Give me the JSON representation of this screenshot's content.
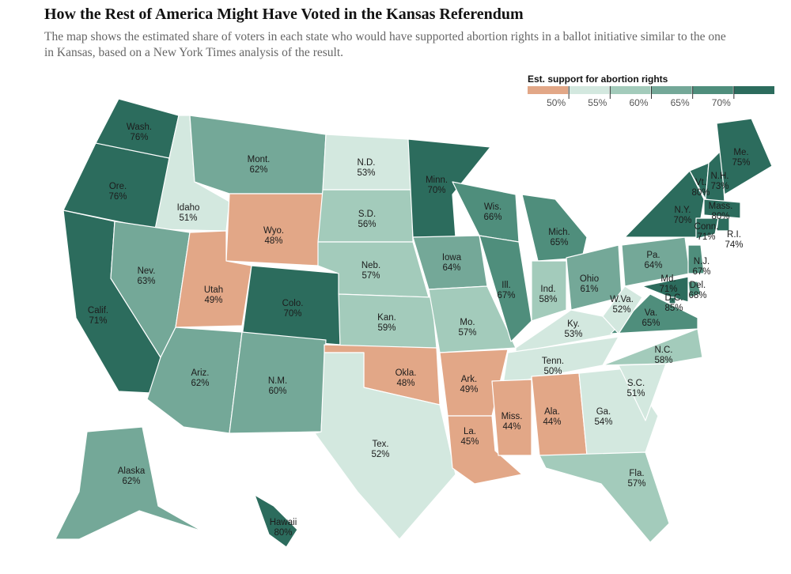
{
  "header": {
    "title": "How the Rest of America Might Have Voted in the Kansas Referendum",
    "subtitle_lines": [
      "The map shows the estimated share of voters in each state who would have supported abortion rights in a ballot initiative similar to the one",
      "in Kansas, based on a New York Times analysis of the result."
    ]
  },
  "legend": {
    "title": "Est. support for abortion rights",
    "ticks": [
      {
        "value": 50,
        "label": "50%"
      },
      {
        "value": 55,
        "label": "55%"
      },
      {
        "value": 60,
        "label": "60%"
      },
      {
        "value": 65,
        "label": "65%"
      },
      {
        "value": 70,
        "label": "70%"
      }
    ],
    "colors": [
      "#e2a787",
      "#d3e8df",
      "#a3cbbb",
      "#74a898",
      "#4f8e7c",
      "#2c6c5d"
    ]
  },
  "states": [
    {
      "name": "Wash.",
      "value": 76,
      "value_label": "76%"
    },
    {
      "name": "Ore.",
      "value": 76,
      "value_label": "76%"
    },
    {
      "name": "Calif.",
      "value": 71,
      "value_label": "71%"
    },
    {
      "name": "Idaho",
      "value": 51,
      "value_label": "51%"
    },
    {
      "name": "Nev.",
      "value": 63,
      "value_label": "63%"
    },
    {
      "name": "Mont.",
      "value": 62,
      "value_label": "62%"
    },
    {
      "name": "Wyo.",
      "value": 48,
      "value_label": "48%"
    },
    {
      "name": "Utah",
      "value": 49,
      "value_label": "49%"
    },
    {
      "name": "Colo.",
      "value": 70,
      "value_label": "70%"
    },
    {
      "name": "Ariz.",
      "value": 62,
      "value_label": "62%"
    },
    {
      "name": "N.M.",
      "value": 60,
      "value_label": "60%"
    },
    {
      "name": "N.D.",
      "value": 53,
      "value_label": "53%"
    },
    {
      "name": "S.D.",
      "value": 56,
      "value_label": "56%"
    },
    {
      "name": "Neb.",
      "value": 57,
      "value_label": "57%"
    },
    {
      "name": "Kan.",
      "value": 59,
      "value_label": "59%"
    },
    {
      "name": "Okla.",
      "value": 48,
      "value_label": "48%"
    },
    {
      "name": "Tex.",
      "value": 52,
      "value_label": "52%"
    },
    {
      "name": "Minn.",
      "value": 70,
      "value_label": "70%"
    },
    {
      "name": "Iowa",
      "value": 64,
      "value_label": "64%"
    },
    {
      "name": "Mo.",
      "value": 57,
      "value_label": "57%"
    },
    {
      "name": "Ark.",
      "value": 49,
      "value_label": "49%"
    },
    {
      "name": "La.",
      "value": 45,
      "value_label": "45%"
    },
    {
      "name": "Wis.",
      "value": 66,
      "value_label": "66%"
    },
    {
      "name": "Ill.",
      "value": 67,
      "value_label": "67%"
    },
    {
      "name": "Mich.",
      "value": 65,
      "value_label": "65%"
    },
    {
      "name": "Ind.",
      "value": 58,
      "value_label": "58%"
    },
    {
      "name": "Ohio",
      "value": 61,
      "value_label": "61%"
    },
    {
      "name": "Ky.",
      "value": 53,
      "value_label": "53%"
    },
    {
      "name": "Tenn.",
      "value": 50,
      "value_label": "50%"
    },
    {
      "name": "Miss.",
      "value": 44,
      "value_label": "44%"
    },
    {
      "name": "Ala.",
      "value": 44,
      "value_label": "44%"
    },
    {
      "name": "Ga.",
      "value": 54,
      "value_label": "54%"
    },
    {
      "name": "Fla.",
      "value": 57,
      "value_label": "57%"
    },
    {
      "name": "S.C.",
      "value": 51,
      "value_label": "51%"
    },
    {
      "name": "N.C.",
      "value": 58,
      "value_label": "58%"
    },
    {
      "name": "Va.",
      "value": 65,
      "value_label": "65%"
    },
    {
      "name": "W.Va.",
      "value": 52,
      "value_label": "52%"
    },
    {
      "name": "Pa.",
      "value": 64,
      "value_label": "64%"
    },
    {
      "name": "N.Y.",
      "value": 70,
      "value_label": "70%"
    },
    {
      "name": "Vt.",
      "value": 80,
      "value_label": "80%"
    },
    {
      "name": "N.H.",
      "value": 73,
      "value_label": "73%"
    },
    {
      "name": "Me.",
      "value": 75,
      "value_label": "75%"
    },
    {
      "name": "Mass.",
      "value": 80,
      "value_label": "80%"
    },
    {
      "name": "Conn.",
      "value": 71,
      "value_label": "71%"
    },
    {
      "name": "R.I.",
      "value": 74,
      "value_label": "74%"
    },
    {
      "name": "N.J.",
      "value": 67,
      "value_label": "67%"
    },
    {
      "name": "Del.",
      "value": 68,
      "value_label": "68%"
    },
    {
      "name": "Md.",
      "value": 71,
      "value_label": "71%"
    },
    {
      "name": "D.C.",
      "value": 85,
      "value_label": "85%"
    },
    {
      "name": "Alaska",
      "value": 62,
      "value_label": "62%"
    },
    {
      "name": "Hawaii",
      "value": 80,
      "value_label": "80%"
    }
  ]
}
